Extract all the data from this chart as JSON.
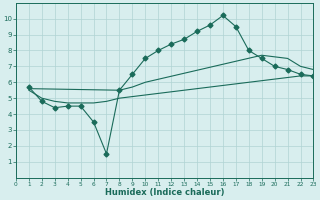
{
  "line1_x": [
    1,
    2,
    3,
    4,
    5,
    6,
    7,
    8,
    9,
    10,
    11,
    12,
    13,
    14,
    15,
    16,
    17,
    18,
    19,
    20,
    21,
    22,
    23
  ],
  "line1_y": [
    5.7,
    4.8,
    4.4,
    4.5,
    4.5,
    3.5,
    1.5,
    5.5,
    6.5,
    7.5,
    8.0,
    8.4,
    8.7,
    9.2,
    9.6,
    10.2,
    9.5,
    8.0,
    7.5,
    7.0,
    6.8,
    6.5,
    6.4
  ],
  "line2_x": [
    1,
    2,
    3,
    4,
    5,
    6,
    7,
    8,
    9,
    10,
    11,
    12,
    13,
    14,
    15,
    16,
    17,
    18,
    19,
    20,
    21,
    22,
    23
  ],
  "line2_y": [
    5.5,
    5.0,
    4.8,
    4.7,
    4.7,
    4.7,
    4.8,
    5.0,
    5.1,
    5.2,
    5.3,
    5.4,
    5.5,
    5.6,
    5.7,
    5.8,
    5.9,
    6.0,
    6.1,
    6.2,
    6.3,
    6.4,
    6.4
  ],
  "line3_x": [
    1,
    8,
    9,
    10,
    19,
    20,
    21,
    22,
    23
  ],
  "line3_y": [
    5.6,
    5.5,
    5.7,
    6.0,
    7.7,
    7.6,
    7.5,
    7.0,
    6.8
  ],
  "line_color": "#1a6b5a",
  "bg_color": "#d8eeee",
  "grid_color": "#b0d4d4",
  "xlabel": "Humidex (Indice chaleur)",
  "xlim": [
    0,
    23
  ],
  "ylim": [
    0,
    11
  ],
  "xticks": [
    0,
    1,
    2,
    3,
    4,
    5,
    6,
    7,
    8,
    9,
    10,
    11,
    12,
    13,
    14,
    15,
    16,
    17,
    18,
    19,
    20,
    21,
    22,
    23
  ],
  "yticks": [
    1,
    2,
    3,
    4,
    5,
    6,
    7,
    8,
    9,
    10
  ],
  "marker": "D",
  "markersize": 2.5
}
